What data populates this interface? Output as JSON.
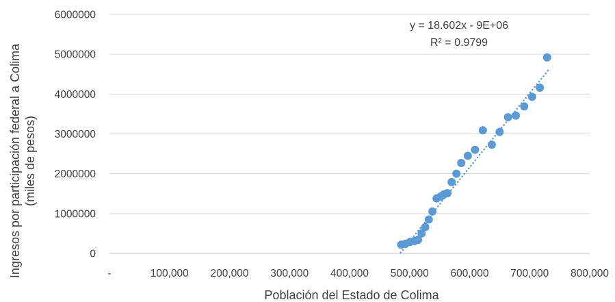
{
  "chart_data": {
    "type": "scatter",
    "xlabel": "Población del Estado de Colima",
    "ylabel_lines": [
      "Ingresos por participación federal a Colima",
      "(miles de pesos)"
    ],
    "xlim": [
      0,
      800000
    ],
    "ylim": [
      0,
      6000000
    ],
    "x_tick_labels": [
      "-",
      "100,000",
      "200,000",
      "300,000",
      "400,000",
      "500,000",
      "600,000",
      "700,000",
      "800,000"
    ],
    "y_tick_labels": [
      "0",
      "1000000",
      "2000000",
      "3000000",
      "4000000",
      "5000000",
      "6000000"
    ],
    "x_ticks": [
      0,
      100000,
      200000,
      300000,
      400000,
      500000,
      600000,
      700000,
      800000
    ],
    "y_ticks": [
      0,
      1000000,
      2000000,
      3000000,
      4000000,
      5000000,
      6000000
    ],
    "trendline": {
      "equation": "y = 18.602x - 9E+06",
      "r_squared": "R² = 0.9799",
      "slope": 18.602,
      "intercept": -9000000,
      "x_range": [
        485000,
        733000
      ],
      "style": "dotted"
    },
    "grid": "horizontal",
    "marker_color": "#5b9bd5",
    "points": [
      {
        "x": 486000,
        "y": 220000
      },
      {
        "x": 493000,
        "y": 240000
      },
      {
        "x": 501000,
        "y": 290000
      },
      {
        "x": 508000,
        "y": 310000
      },
      {
        "x": 514000,
        "y": 340000
      },
      {
        "x": 520000,
        "y": 500000
      },
      {
        "x": 526000,
        "y": 660000
      },
      {
        "x": 532000,
        "y": 850000
      },
      {
        "x": 538000,
        "y": 1050000
      },
      {
        "x": 545000,
        "y": 1380000
      },
      {
        "x": 552000,
        "y": 1430000
      },
      {
        "x": 557000,
        "y": 1480000
      },
      {
        "x": 563000,
        "y": 1510000
      },
      {
        "x": 570000,
        "y": 1790000
      },
      {
        "x": 578000,
        "y": 2000000
      },
      {
        "x": 586000,
        "y": 2270000
      },
      {
        "x": 597000,
        "y": 2450000
      },
      {
        "x": 609000,
        "y": 2600000
      },
      {
        "x": 622000,
        "y": 3090000
      },
      {
        "x": 637000,
        "y": 2730000
      },
      {
        "x": 650000,
        "y": 3050000
      },
      {
        "x": 664000,
        "y": 3420000
      },
      {
        "x": 677000,
        "y": 3460000
      },
      {
        "x": 691000,
        "y": 3690000
      },
      {
        "x": 704000,
        "y": 3930000
      },
      {
        "x": 717000,
        "y": 4160000
      },
      {
        "x": 729000,
        "y": 4920000
      }
    ]
  }
}
